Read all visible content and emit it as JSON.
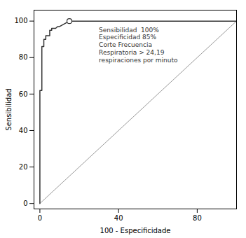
{
  "chart_data": {
    "type": "line",
    "series": [
      {
        "type": "line",
        "color": "#999999",
        "line_style": "solid",
        "x": [
          0,
          100
        ],
        "values": [
          0,
          100
        ]
      },
      {
        "type": "line",
        "color": "#333333",
        "line_style": "solid",
        "x": [
          0,
          0,
          0,
          0,
          0,
          0,
          1,
          1,
          1,
          1,
          2,
          2,
          2,
          3,
          3,
          4,
          5,
          5,
          6,
          6,
          7,
          8,
          9,
          10,
          15,
          100
        ],
        "values": [
          0,
          16,
          20,
          47,
          48,
          62,
          62,
          80,
          84,
          86,
          86,
          89,
          90,
          90,
          92,
          92,
          92,
          95,
          95,
          96,
          96,
          96,
          97,
          97,
          100,
          100
        ]
      },
      {
        "type": "scatter",
        "color": "#333333",
        "marker": "circle",
        "x": [
          15
        ],
        "values": [
          100
        ]
      }
    ],
    "annotations": [
      {
        "text": "Sensibilidad  100%\nEspecificidad 85%\nCorte Frecuencia\nRespiratoria > 24,19\nrespiraciones por minuto",
        "x": 30,
        "y": 97
      }
    ],
    "xlabel": "100 - Especificidade",
    "ylabel": "Sensibilidad",
    "xlim": [
      -3,
      100
    ],
    "ylim": [
      -3,
      106
    ],
    "xticks": [
      0,
      40,
      80
    ],
    "yticks": [
      0,
      20,
      40,
      60,
      80,
      100
    ],
    "grid": false
  }
}
